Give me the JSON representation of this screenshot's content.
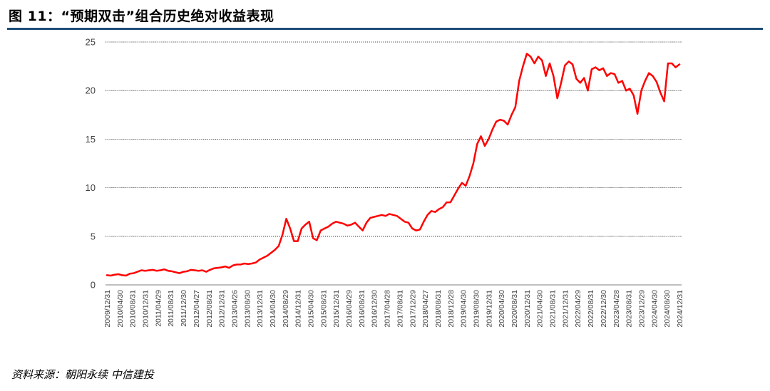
{
  "title": "图 11：“预期双击”组合历史绝对收益表现",
  "source": "资料来源：朝阳永续  中信建投",
  "colors": {
    "line": "#ff0000",
    "title_rule": "#1f4e79",
    "grid": "#000000"
  },
  "chart_data": {
    "type": "line",
    "title": "",
    "xlabel": "",
    "ylabel": "",
    "ylim": [
      0,
      25
    ],
    "yticks": [
      0,
      5,
      10,
      15,
      20,
      25
    ],
    "grid": "horizontal-dotted",
    "x_tick_labels": [
      "2009/12/31",
      "2010/04/30",
      "2010/08/31",
      "2010/12/31",
      "2011/04/29",
      "2011/08/31",
      "2011/12/30",
      "2012/04/27",
      "2012/08/31",
      "2012/12/31",
      "2013/04/26",
      "2013/08/30",
      "2013/12/31",
      "2014/04/30",
      "2014/08/29",
      "2014/12/31",
      "2015/04/30",
      "2015/08/31",
      "2015/12/31",
      "2016/04/29",
      "2016/08/31",
      "2016/12/30",
      "2017/04/28",
      "2017/08/31",
      "2017/12/29",
      "2018/04/27",
      "2018/08/31",
      "2018/12/28",
      "2019/04/30",
      "2019/08/30",
      "2019/12/31",
      "2020/04/30",
      "2020/08/31",
      "2020/12/31",
      "2021/04/30",
      "2021/08/31",
      "2021/12/31",
      "2022/04/29",
      "2022/08/31",
      "2022/12/30",
      "2023/04/28",
      "2023/08/31",
      "2023/12/29",
      "2024/04/30",
      "2024/08/30",
      "2024/12/31"
    ],
    "series": [
      {
        "values": [
          1.0,
          0.95,
          1.05,
          1.1,
          1.0,
          0.95,
          1.15,
          1.2,
          1.35,
          1.5,
          1.45,
          1.5,
          1.55,
          1.45,
          1.5,
          1.6,
          1.45,
          1.4,
          1.3,
          1.2,
          1.35,
          1.4,
          1.55,
          1.5,
          1.45,
          1.5,
          1.35,
          1.55,
          1.7,
          1.75,
          1.8,
          1.9,
          1.75,
          2.0,
          2.1,
          2.1,
          2.2,
          2.15,
          2.2,
          2.3,
          2.6,
          2.8,
          3.0,
          3.3,
          3.6,
          4.0,
          5.2,
          6.8,
          5.8,
          4.5,
          4.5,
          5.8,
          6.2,
          6.5,
          4.8,
          4.6,
          5.6,
          5.8,
          6.0,
          6.3,
          6.5,
          6.4,
          6.3,
          6.1,
          6.2,
          6.4,
          6.0,
          5.6,
          6.4,
          6.9,
          7.0,
          7.1,
          7.2,
          7.1,
          7.3,
          7.2,
          7.1,
          6.8,
          6.5,
          6.4,
          5.8,
          5.6,
          5.7,
          6.5,
          7.2,
          7.6,
          7.5,
          7.8,
          8.0,
          8.5,
          8.5,
          9.2,
          9.9,
          10.5,
          10.2,
          11.2,
          12.5,
          14.5,
          15.3,
          14.3,
          15.0,
          16.0,
          16.8,
          17.0,
          16.9,
          16.5,
          17.5,
          18.3,
          21.0,
          22.5,
          23.8,
          23.5,
          22.8,
          23.5,
          23.1,
          21.5,
          22.8,
          21.5,
          19.2,
          20.8,
          22.6,
          23.0,
          22.7,
          21.2,
          20.8,
          21.3,
          20.0,
          22.2,
          22.4,
          22.1,
          22.3,
          21.5,
          21.8,
          21.7,
          20.8,
          21.0,
          20.0,
          20.2,
          19.5,
          17.6,
          20.0,
          21.0,
          21.8,
          21.5,
          20.9,
          19.8,
          18.9,
          22.8,
          22.8,
          22.4,
          22.7
        ]
      }
    ]
  }
}
